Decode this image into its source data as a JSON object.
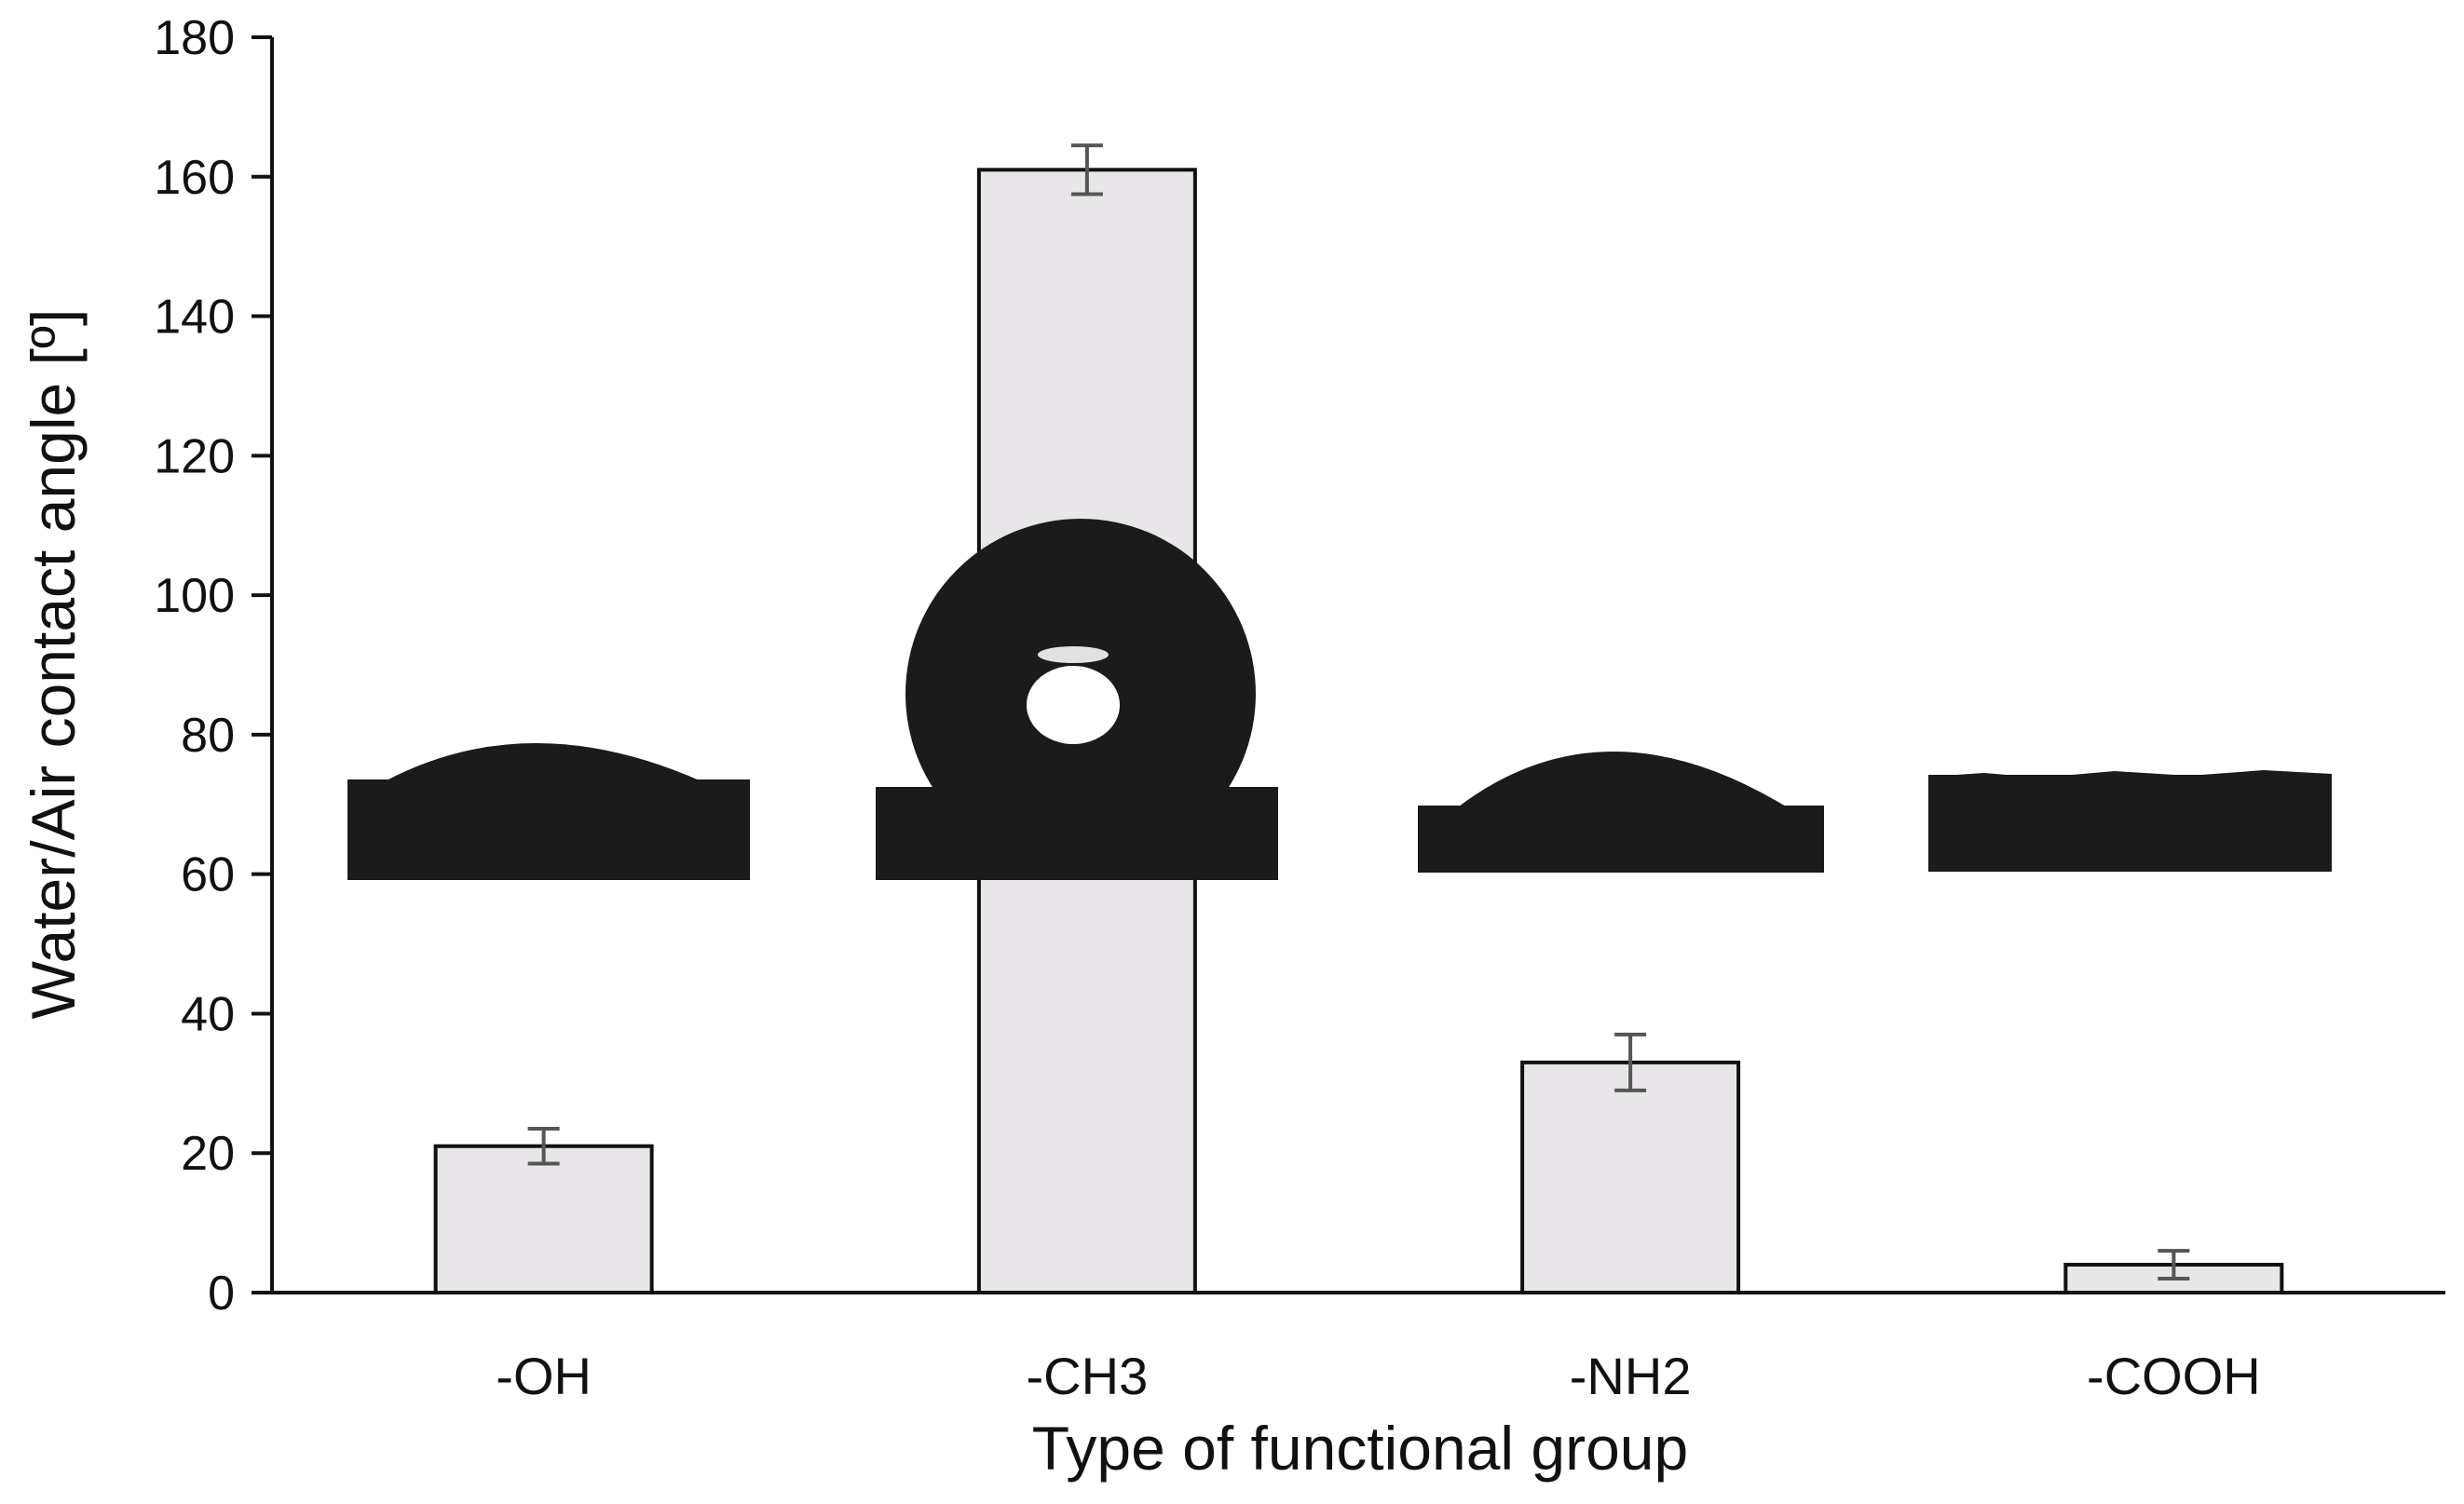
{
  "chart_data": {
    "type": "bar",
    "xlabel": "Type of functional group",
    "ylabel": "Water/Air contact angle [º]",
    "categories": [
      "-OH",
      "-CH3",
      "-NH2",
      "-COOH"
    ],
    "values": [
      21,
      161,
      33,
      4
    ],
    "errors": [
      2.5,
      3.5,
      4,
      2
    ],
    "ylim": [
      0,
      180
    ],
    "yticks": [
      0,
      20,
      40,
      60,
      80,
      100,
      120,
      140,
      160,
      180
    ],
    "grid": false,
    "legend": "none",
    "colors": {
      "bar_fill": "#e8e6e8",
      "bar_stroke": "#111111",
      "error_bar": "#555555",
      "droplet": "#1b1b1b"
    },
    "insets": [
      {
        "category": "-OH",
        "droplet_shape": "flat-cap"
      },
      {
        "category": "-CH3",
        "droplet_shape": "sphere"
      },
      {
        "category": "-NH2",
        "droplet_shape": "low-cap"
      },
      {
        "category": "-COOH",
        "droplet_shape": "spread"
      }
    ]
  }
}
